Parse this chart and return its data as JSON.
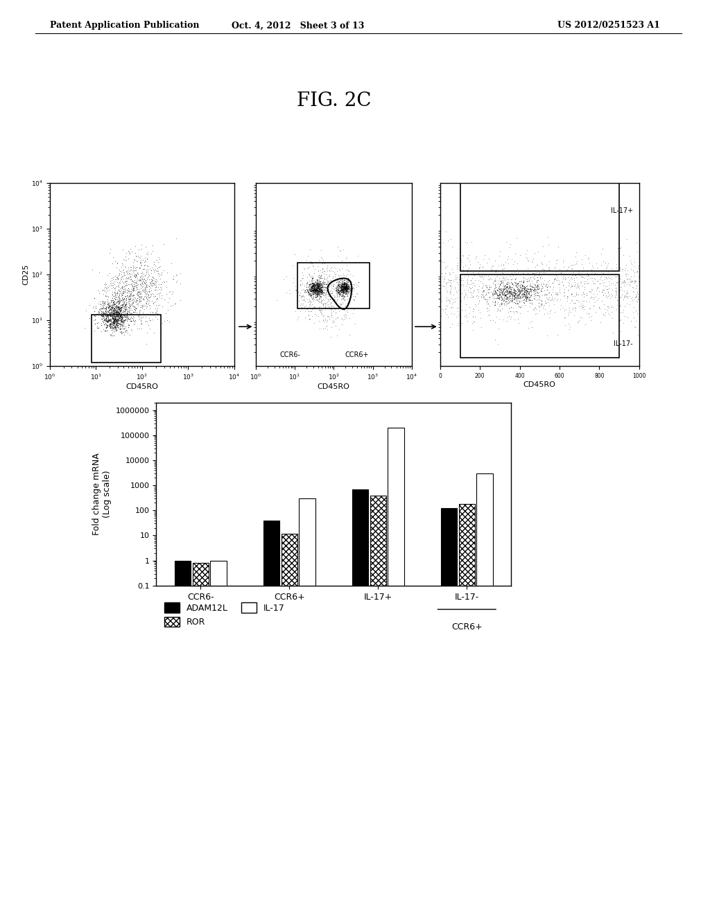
{
  "header_left": "Patent Application Publication",
  "header_mid": "Oct. 4, 2012   Sheet 3 of 13",
  "header_right": "US 2012/0251523 A1",
  "fig_title": "FIG. 2C",
  "flow_panels": [
    {
      "xlabel": "CD45RO",
      "ylabel": "CD25"
    },
    {
      "xlabel": "CD45RO",
      "ylabel": ""
    },
    {
      "xlabel": "CD45RO",
      "ylabel": ""
    }
  ],
  "bar_categories": [
    "CCR6-",
    "CCR6+",
    "IL-17+",
    "IL-17-"
  ],
  "bar_data": {
    "ADAM12L": [
      1.0,
      40.0,
      700.0,
      120.0
    ],
    "ROR": [
      0.8,
      12.0,
      400.0,
      180.0
    ],
    "IL-17": [
      1.0,
      300.0,
      200000.0,
      3000.0
    ]
  },
  "ylabel_bar": "Fold change mRNA\n(Log scale)",
  "background_color": "#ffffff"
}
